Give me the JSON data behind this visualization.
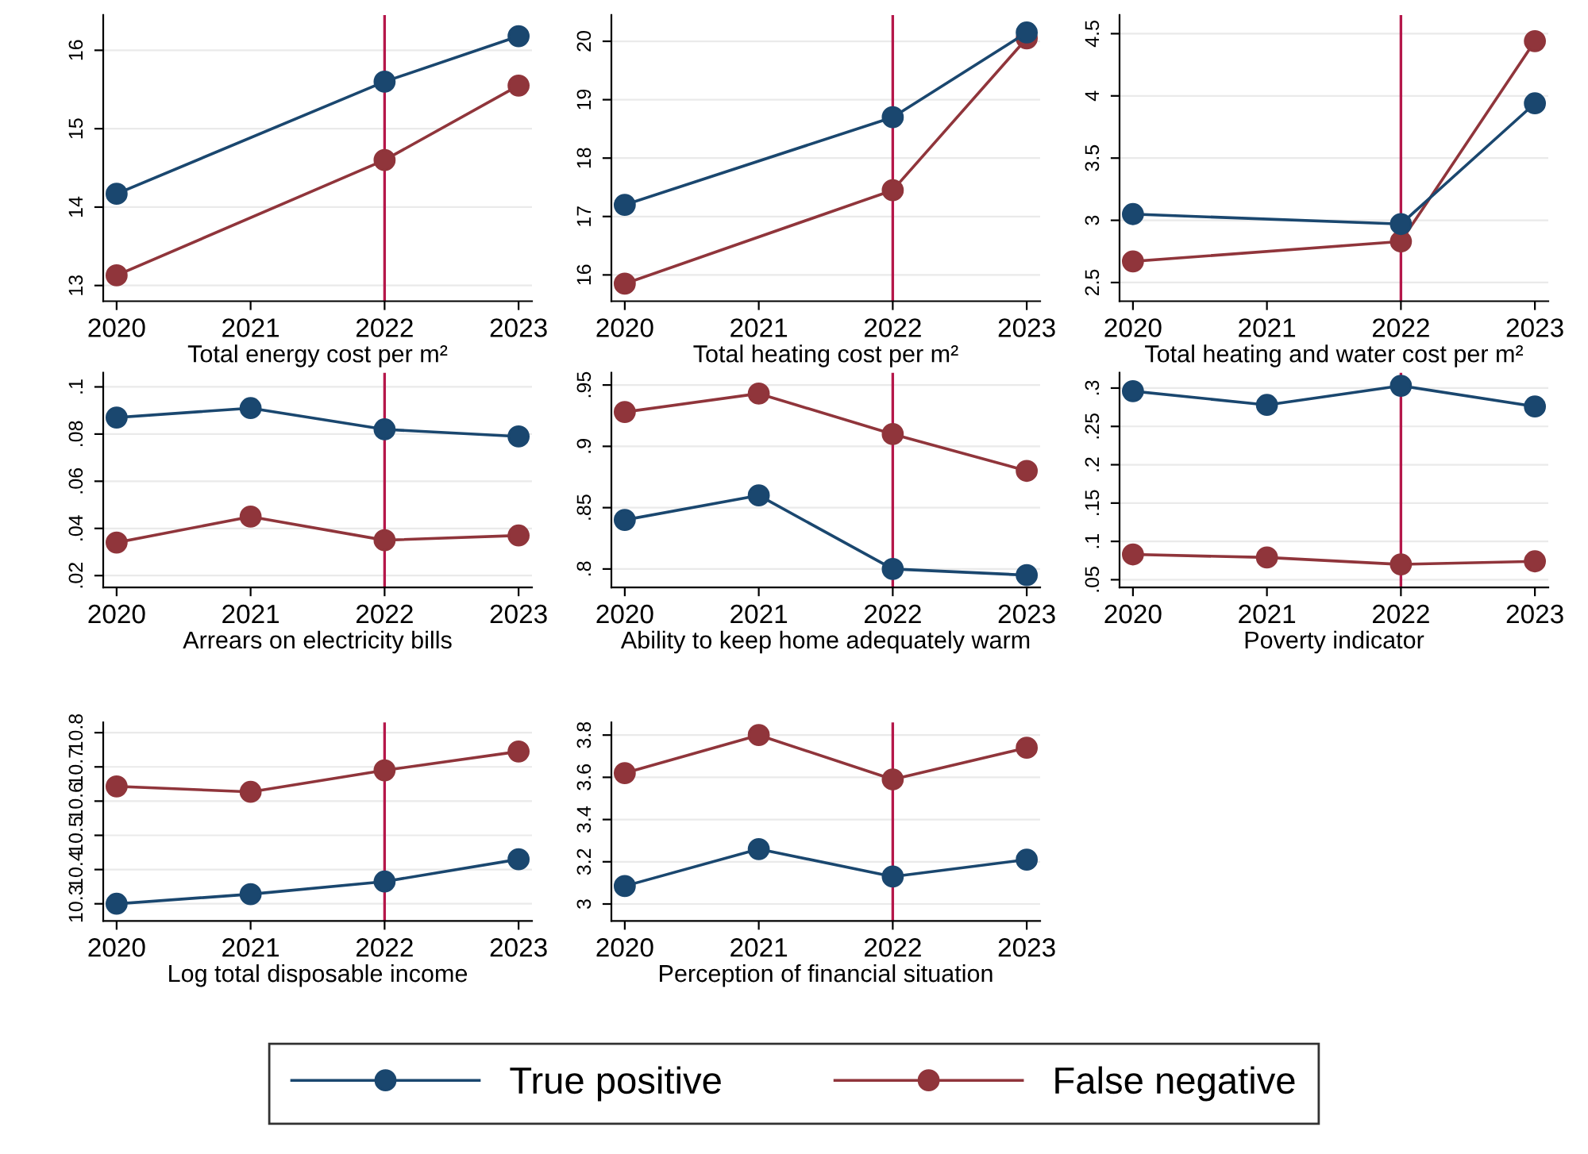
{
  "chart_data": [
    {
      "type": "line",
      "xlabel": "Total energy cost per m²",
      "x": [
        2020,
        2022,
        2023
      ],
      "xlim": [
        2019.9,
        2023.1
      ],
      "xticks": [
        2020,
        2021,
        2022,
        2023
      ],
      "ylim": [
        12.8,
        16.45
      ],
      "yticks": [
        13,
        14,
        15,
        16
      ],
      "grid": "y",
      "marker": "circle",
      "legend": "bottom",
      "ref_lines": [
        {
          "axis": "x",
          "value": 2022,
          "color": "#b5174a"
        }
      ],
      "series": [
        {
          "name": "True positive",
          "color": "#1a476f",
          "values": [
            14.17,
            15.6,
            16.18
          ]
        },
        {
          "name": "False negative",
          "color": "#90353b",
          "values": [
            13.13,
            14.6,
            15.55
          ]
        }
      ]
    },
    {
      "type": "line",
      "xlabel": "Total heating cost per m²",
      "x": [
        2020,
        2022,
        2023
      ],
      "xlim": [
        2019.9,
        2023.1
      ],
      "xticks": [
        2020,
        2021,
        2022,
        2023
      ],
      "ylim": [
        15.55,
        20.45
      ],
      "yticks": [
        16,
        17,
        18,
        19,
        20
      ],
      "grid": "y",
      "marker": "circle",
      "ref_lines": [
        {
          "axis": "x",
          "value": 2022,
          "color": "#b5174a"
        }
      ],
      "series": [
        {
          "color": "#1a476f",
          "values": [
            17.2,
            18.7,
            20.15
          ]
        },
        {
          "color": "#90353b",
          "values": [
            15.85,
            17.45,
            20.05
          ]
        }
      ]
    },
    {
      "type": "line",
      "xlabel": "Total heating and water cost per m²",
      "x": [
        2020,
        2022,
        2023
      ],
      "xlim": [
        2019.9,
        2023.1
      ],
      "xticks": [
        2020,
        2021,
        2022,
        2023
      ],
      "ylim": [
        2.35,
        4.65
      ],
      "yticks": [
        2.5,
        3,
        3.5,
        4,
        4.5
      ],
      "grid": "y",
      "marker": "circle",
      "ref_lines": [
        {
          "axis": "x",
          "value": 2022,
          "color": "#b5174a"
        }
      ],
      "series": [
        {
          "color": "#1a476f",
          "values": [
            3.05,
            2.97,
            3.94
          ]
        },
        {
          "color": "#90353b",
          "values": [
            2.67,
            2.83,
            4.44
          ]
        }
      ]
    },
    {
      "type": "line",
      "xlabel": "Arrears on electricity bills",
      "x": [
        2020,
        2021,
        2022,
        2023
      ],
      "xlim": [
        2019.9,
        2023.1
      ],
      "xticks": [
        2020,
        2021,
        2022,
        2023
      ],
      "ylim": [
        0.015,
        0.106
      ],
      "yticks": [
        {
          "value": 0.02,
          "label": ".02"
        },
        {
          "value": 0.04,
          "label": ".04"
        },
        {
          "value": 0.06,
          "label": ".06"
        },
        {
          "value": 0.08,
          "label": ".08"
        },
        {
          "value": 0.1,
          "label": ".1"
        }
      ],
      "grid": "y",
      "marker": "circle",
      "ref_lines": [
        {
          "axis": "x",
          "value": 2022,
          "color": "#b5174a"
        }
      ],
      "series": [
        {
          "color": "#1a476f",
          "values": [
            0.087,
            0.091,
            0.082,
            0.079
          ]
        },
        {
          "color": "#90353b",
          "values": [
            0.034,
            0.045,
            0.035,
            0.037
          ]
        }
      ]
    },
    {
      "type": "line",
      "xlabel": "Ability to keep home adequately warm",
      "x": [
        2020,
        2021,
        2022,
        2023
      ],
      "xlim": [
        2019.9,
        2023.1
      ],
      "xticks": [
        2020,
        2021,
        2022,
        2023
      ],
      "ylim": [
        0.785,
        0.96
      ],
      "yticks": [
        {
          "value": 0.8,
          "label": ".8"
        },
        {
          "value": 0.85,
          "label": ".85"
        },
        {
          "value": 0.9,
          "label": ".9"
        },
        {
          "value": 0.95,
          "label": ".95"
        }
      ],
      "grid": "y",
      "marker": "circle",
      "ref_lines": [
        {
          "axis": "x",
          "value": 2022,
          "color": "#b5174a"
        }
      ],
      "series": [
        {
          "color": "#1a476f",
          "values": [
            0.84,
            0.86,
            0.8,
            0.795
          ]
        },
        {
          "color": "#90353b",
          "values": [
            0.928,
            0.943,
            0.91,
            0.88
          ]
        }
      ]
    },
    {
      "type": "line",
      "xlabel": "Poverty indicator",
      "x": [
        2020,
        2021,
        2022,
        2023
      ],
      "xlim": [
        2019.9,
        2023.1
      ],
      "xticks": [
        2020,
        2021,
        2022,
        2023
      ],
      "ylim": [
        0.04,
        0.32
      ],
      "yticks": [
        {
          "value": 0.05,
          "label": ".05"
        },
        {
          "value": 0.1,
          "label": ".1"
        },
        {
          "value": 0.15,
          "label": ".15"
        },
        {
          "value": 0.2,
          "label": ".2"
        },
        {
          "value": 0.25,
          "label": ".25"
        },
        {
          "value": 0.3,
          "label": ".3"
        }
      ],
      "grid": "y",
      "marker": "circle",
      "ref_lines": [
        {
          "axis": "x",
          "value": 2022,
          "color": "#b5174a"
        }
      ],
      "series": [
        {
          "color": "#1a476f",
          "values": [
            0.296,
            0.278,
            0.303,
            0.276
          ]
        },
        {
          "color": "#90353b",
          "values": [
            0.083,
            0.079,
            0.07,
            0.074
          ]
        }
      ]
    },
    {
      "type": "line",
      "xlabel": "Log total disposable income",
      "x": [
        2020,
        2021,
        2022,
        2023
      ],
      "xlim": [
        2019.9,
        2023.1
      ],
      "xticks": [
        2020,
        2021,
        2022,
        2023
      ],
      "ylim": [
        10.25,
        10.83
      ],
      "yticks": [
        10.3,
        10.4,
        10.5,
        10.6,
        10.7,
        10.8
      ],
      "grid": "y",
      "marker": "circle",
      "ref_lines": [
        {
          "axis": "x",
          "value": 2022,
          "color": "#b5174a"
        }
      ],
      "series": [
        {
          "color": "#1a476f",
          "values": [
            10.3,
            10.328,
            10.365,
            10.43
          ]
        },
        {
          "color": "#90353b",
          "values": [
            10.643,
            10.627,
            10.69,
            10.745
          ]
        }
      ]
    },
    {
      "type": "line",
      "xlabel": "Perception of financial situation",
      "x": [
        2020,
        2021,
        2022,
        2023
      ],
      "xlim": [
        2019.9,
        2023.1
      ],
      "xticks": [
        2020,
        2021,
        2022,
        2023
      ],
      "ylim": [
        2.92,
        3.86
      ],
      "yticks": [
        3,
        3.2,
        3.4,
        3.6,
        3.8
      ],
      "grid": "y",
      "marker": "circle",
      "ref_lines": [
        {
          "axis": "x",
          "value": 2022,
          "color": "#b5174a"
        }
      ],
      "series": [
        {
          "color": "#1a476f",
          "values": [
            3.085,
            3.26,
            3.13,
            3.21
          ]
        },
        {
          "color": "#90353b",
          "values": [
            3.62,
            3.8,
            3.59,
            3.74
          ]
        }
      ]
    }
  ]
}
